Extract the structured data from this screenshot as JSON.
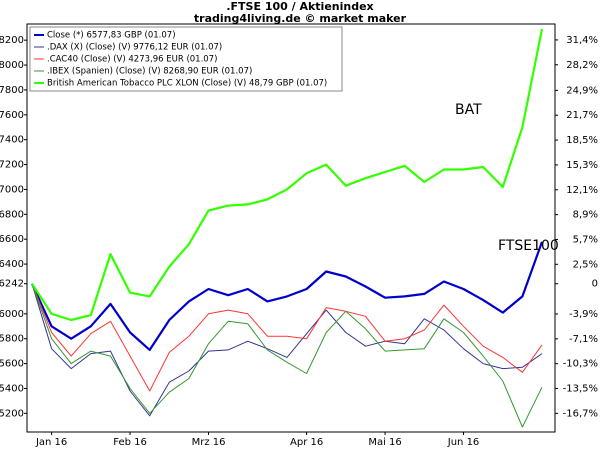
{
  "chart_data": {
    "type": "line",
    "title": ".FTSE 100 / Aktienindex",
    "subtitle": "trading4living.de © market maker",
    "categories": [
      null,
      "Jan 16",
      null,
      null,
      null,
      "Feb 16",
      null,
      null,
      null,
      "Mrz 16",
      null,
      null,
      null,
      null,
      "Apr 16",
      null,
      null,
      null,
      "Mai 16",
      null,
      null,
      null,
      "Jun 16",
      null,
      null,
      null,
      null
    ],
    "series": [
      {
        "name": "Close (*) 6577,83 GBP (01.07)",
        "color": "#0000cc",
        "values": [
          6242,
          5900,
          5800,
          5900,
          6080,
          5850,
          5710,
          5950,
          6100,
          6200,
          6150,
          6200,
          6100,
          6140,
          6200,
          6340,
          6300,
          6220,
          6130,
          6140,
          6160,
          6260,
          6200,
          6110,
          6010,
          6140,
          6578
        ]
      },
      {
        "name": ".DAX (X) (Close) (V) 9776,12 EUR (01.07)",
        "color": "#333399",
        "values": [
          6242,
          5720,
          5560,
          5680,
          5700,
          5380,
          5180,
          5450,
          5540,
          5700,
          5710,
          5780,
          5720,
          5650,
          5840,
          6030,
          5850,
          5740,
          5780,
          5760,
          5960,
          5870,
          5720,
          5600,
          5560,
          5570,
          5680
        ]
      },
      {
        "name": ".CAC40 (Close) (V) 4273,96 EUR (01.07)",
        "color": "#ff3333",
        "values": [
          6242,
          5850,
          5660,
          5840,
          5940,
          5660,
          5380,
          5690,
          5820,
          6000,
          6030,
          6000,
          5820,
          5820,
          5800,
          6050,
          6020,
          5980,
          5780,
          5800,
          5870,
          6070,
          5900,
          5740,
          5650,
          5530,
          5750
        ]
      },
      {
        "name": ".IBEX (Spanien) (Close) (V) 8268,90 EUR (01.07)",
        "color": "#339933",
        "values": [
          6242,
          5800,
          5600,
          5700,
          5660,
          5400,
          5200,
          5370,
          5480,
          5760,
          5940,
          5920,
          5710,
          5610,
          5520,
          5850,
          6020,
          5880,
          5700,
          5710,
          5720,
          5960,
          5850,
          5660,
          5460,
          5090,
          5410
        ]
      },
      {
        "name": "British American Tobacco PLC XLON (Close) (V) 48,79 GBP (01.07)",
        "color": "#33ff00",
        "values": [
          6242,
          6000,
          5950,
          5990,
          6480,
          6170,
          6140,
          6380,
          6560,
          6830,
          6870,
          6880,
          6920,
          7000,
          7130,
          7200,
          7030,
          7090,
          7140,
          7190,
          7060,
          7160,
          7160,
          7180,
          7020,
          7500,
          8290
        ]
      }
    ],
    "annotations": [
      {
        "text": "BAT",
        "color": "#33ff00"
      },
      {
        "text": "FTSE100",
        "color": "#0000cc"
      }
    ],
    "ylim": [
      5050,
      8330
    ],
    "yticks": [
      5200,
      5400,
      5600,
      5800,
      6000,
      6242,
      6400,
      6600,
      6800,
      7000,
      7200,
      7400,
      7600,
      7800,
      8000,
      8200
    ],
    "y2lim": [
      -19.1,
      33.45
    ],
    "y2ticks": [
      {
        "value": 31.4,
        "label": "31,4%"
      },
      {
        "value": 28.2,
        "label": "28,2%"
      },
      {
        "value": 24.9,
        "label": "24,9%"
      },
      {
        "value": 21.7,
        "label": "21,7%"
      },
      {
        "value": 18.5,
        "label": "18,5%"
      },
      {
        "value": 15.3,
        "label": "15,3%"
      },
      {
        "value": 12.1,
        "label": "12,1%"
      },
      {
        "value": 8.9,
        "label": "8,9%"
      },
      {
        "value": 5.7,
        "label": "5,7%"
      },
      {
        "value": 2.5,
        "label": "2,5%"
      },
      0,
      {
        "value": -3.9,
        "label": "-3,9%"
      },
      {
        "value": -7.1,
        "label": "-7,1%"
      },
      {
        "value": -10.3,
        "label": "-10,3%"
      },
      {
        "value": -13.5,
        "label": "-13,5%"
      },
      {
        "value": -16.7,
        "label": "-16,7%"
      }
    ],
    "legend": "top-left"
  }
}
